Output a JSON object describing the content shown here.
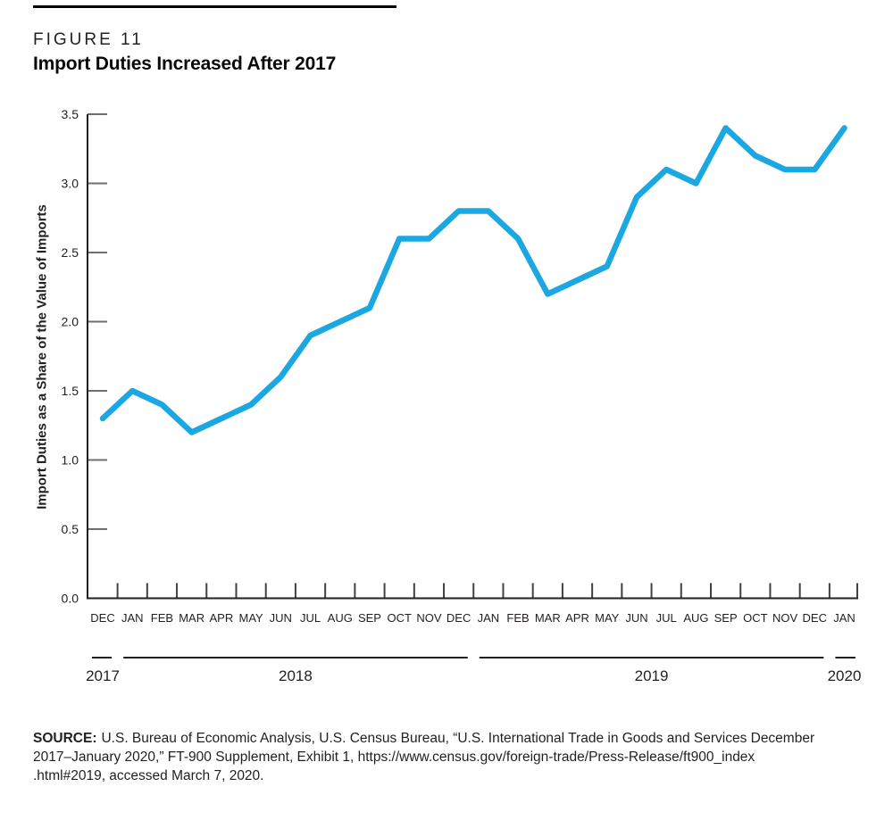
{
  "header": {
    "figure_label": "FIGURE 11",
    "title": "Import Duties Increased After 2017"
  },
  "chart_data": {
    "type": "line",
    "title": "Import Duties Increased After 2017",
    "figure_label": "FIGURE 11",
    "xlabel": "",
    "ylabel": "Import Duties as a Share of the Value of Imports",
    "ylim": [
      0,
      3.5
    ],
    "ytick_step": 0.5,
    "grid": false,
    "legend": "none",
    "line_color": "#1AA7E2",
    "axis_color": "#231f20",
    "y_tick_color": "#6d6e71",
    "x_tick_color": "#414042",
    "x_months": [
      "DEC",
      "JAN",
      "FEB",
      "MAR",
      "APR",
      "MAY",
      "JUN",
      "JUL",
      "AUG",
      "SEP",
      "OCT",
      "NOV",
      "DEC",
      "JAN",
      "FEB",
      "MAR",
      "APR",
      "MAY",
      "JUN",
      "JUL",
      "AUG",
      "SEP",
      "OCT",
      "NOV",
      "DEC",
      "JAN"
    ],
    "year_groups": [
      {
        "label": "2017",
        "months": 1
      },
      {
        "label": "2018",
        "months": 12
      },
      {
        "label": "2019",
        "months": 12
      },
      {
        "label": "2020",
        "months": 1
      }
    ],
    "values": [
      1.3,
      1.5,
      1.4,
      1.2,
      1.3,
      1.4,
      1.6,
      1.9,
      2.0,
      2.1,
      2.6,
      2.6,
      2.8,
      2.8,
      2.6,
      2.2,
      2.3,
      2.4,
      2.9,
      3.1,
      3.0,
      3.4,
      3.2,
      3.1,
      3.1,
      3.4
    ]
  },
  "source": {
    "label": "SOURCE:",
    "line1": "U.S. Bureau of Economic Analysis, U.S. Census Bureau, “U.S. International Trade in Goods and Services December",
    "line2": "2017–January 2020,” FT-900 Supplement, Exhibit 1, https://www.census.gov/foreign-trade/Press-Release/ft900_index",
    "line3": ".html#2019, accessed March 7, 2020."
  }
}
